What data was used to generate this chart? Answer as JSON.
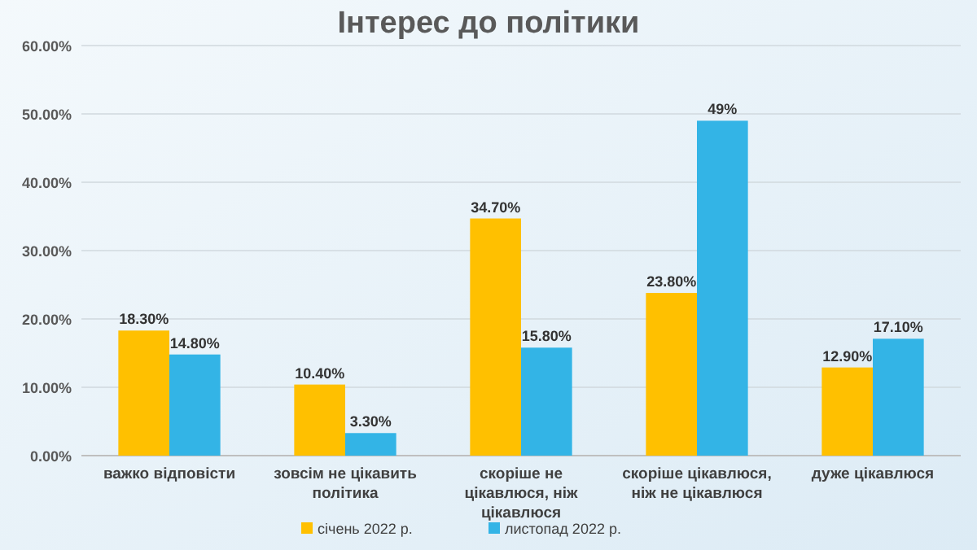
{
  "chart_data": {
    "type": "bar",
    "title": "Інтерес до політики",
    "categories": [
      "важко відповісти",
      "зовсім не цікавить політика",
      "скоріше не цікавлюся, ніж цікавлюся",
      "скоріше цікавлюся, ніж не цікавлюся",
      "дуже цікавлюся"
    ],
    "series": [
      {
        "name": "січень 2022 р.",
        "color": "#ffc000",
        "values": [
          18.3,
          10.4,
          34.7,
          23.8,
          12.9
        ],
        "value_labels": [
          "18.30%",
          "10.40%",
          "34.70%",
          "23.80%",
          "12.90%"
        ]
      },
      {
        "name": "листопад 2022 р.",
        "color": "#33b4e6",
        "values": [
          14.8,
          3.3,
          15.8,
          49,
          17.1
        ],
        "value_labels": [
          "14.80%",
          "3.30%",
          "15.80%",
          "49%",
          "17.10%"
        ]
      }
    ],
    "ylim": [
      0,
      60
    ],
    "yticks": [
      {
        "value": 0,
        "label": "0.00%"
      },
      {
        "value": 10,
        "label": "10.00%"
      },
      {
        "value": 20,
        "label": "20.00%"
      },
      {
        "value": 30,
        "label": "30.00%"
      },
      {
        "value": 40,
        "label": "40.00%"
      },
      {
        "value": 50,
        "label": "50.00%"
      },
      {
        "value": 60,
        "label": "60.00%"
      }
    ],
    "grid": "y",
    "legend": "bottom"
  }
}
